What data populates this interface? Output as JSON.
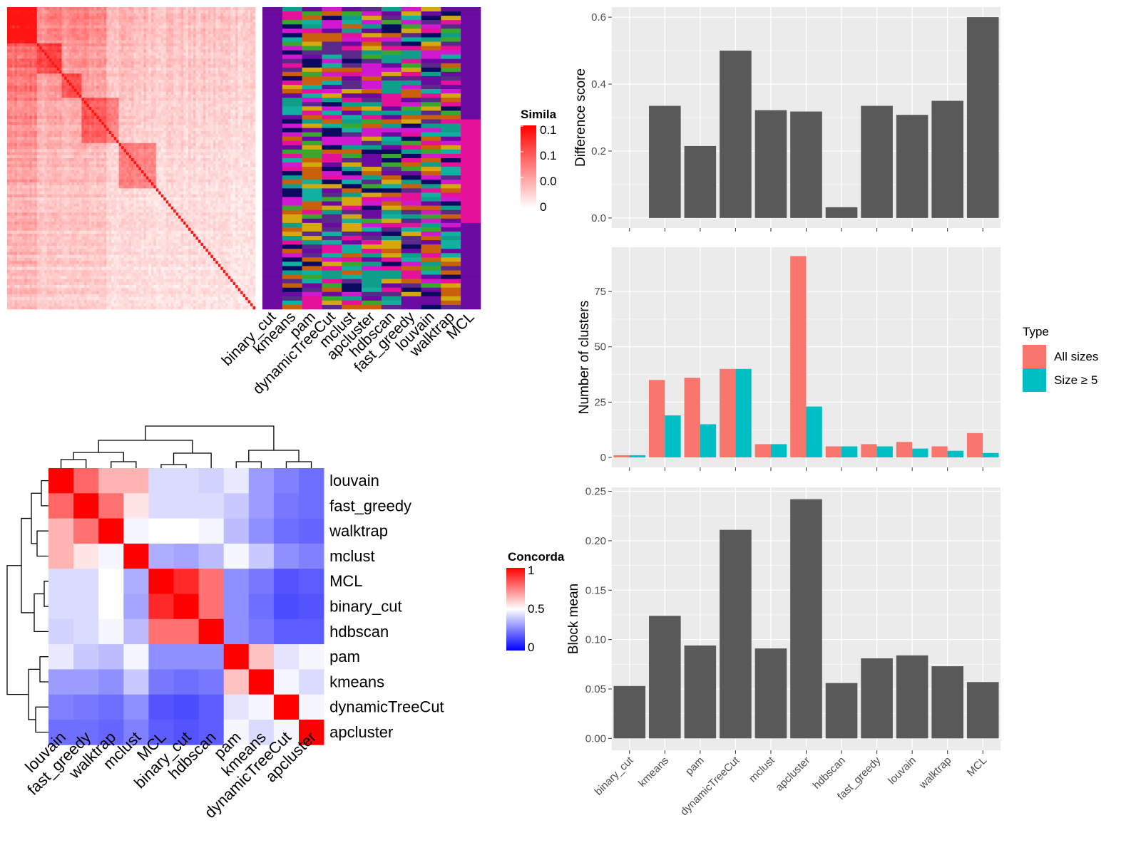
{
  "methods_order": [
    "binary_cut",
    "kmeans",
    "pam",
    "dynamicTreeCut",
    "mclust",
    "apcluster",
    "hdbscan",
    "fast_greedy",
    "louvain",
    "walktrap",
    "MCL"
  ],
  "chart_data": [
    {
      "type": "heatmap",
      "name": "similarity-heatmap",
      "legend_title": "Simila",
      "legend_ticks": [
        "0.1",
        "0.1",
        "0.0",
        "0"
      ],
      "colors": {
        "low": "#ffffff",
        "high": "#ff0000"
      }
    },
    {
      "type": "heatmap",
      "name": "cluster-membership",
      "columns": [
        "binary_cut",
        "kmeans",
        "pam",
        "dynamicTreeCut",
        "mclust",
        "apcluster",
        "hdbscan",
        "fast_greedy",
        "louvain",
        "walktrap",
        "MCL"
      ],
      "palette": [
        "#6a0aa0",
        "#e6119a",
        "#0f9e8a",
        "#d4a80e",
        "#c8600c",
        "#0a0a60",
        "#3aa82e",
        "#d018d0",
        "#12b0a0",
        "#5a2a8a"
      ]
    },
    {
      "type": "heatmap",
      "name": "concordance-heatmap",
      "legend_title": "Concorda",
      "legend_ticks": [
        "1",
        "0.5",
        "0"
      ],
      "colors": {
        "low": "#0000ff",
        "mid": "#ffffff",
        "high": "#ff0000"
      },
      "rows": [
        "louvain",
        "fast_greedy",
        "walktrap",
        "mclust",
        "MCL",
        "binary_cut",
        "hdbscan",
        "pam",
        "kmeans",
        "dynamicTreeCut",
        "apcluster"
      ],
      "columns": [
        "louvain",
        "fast_greedy",
        "walktrap",
        "mclust",
        "MCL",
        "binary_cut",
        "hdbscan",
        "pam",
        "kmeans",
        "dynamicTreeCut",
        "apcluster"
      ],
      "values": [
        [
          1.0,
          0.8,
          0.65,
          0.65,
          0.42,
          0.42,
          0.4,
          0.45,
          0.28,
          0.22,
          0.18
        ],
        [
          0.8,
          1.0,
          0.78,
          0.55,
          0.42,
          0.42,
          0.42,
          0.38,
          0.28,
          0.2,
          0.18
        ],
        [
          0.65,
          0.78,
          1.0,
          0.48,
          0.5,
          0.5,
          0.48,
          0.35,
          0.25,
          0.18,
          0.16
        ],
        [
          0.65,
          0.55,
          0.48,
          1.0,
          0.32,
          0.3,
          0.35,
          0.48,
          0.38,
          0.25,
          0.22
        ],
        [
          0.42,
          0.42,
          0.5,
          0.32,
          1.0,
          0.92,
          0.78,
          0.25,
          0.2,
          0.12,
          0.14
        ],
        [
          0.42,
          0.42,
          0.5,
          0.3,
          0.92,
          1.0,
          0.78,
          0.25,
          0.18,
          0.1,
          0.12
        ],
        [
          0.4,
          0.42,
          0.48,
          0.35,
          0.78,
          0.78,
          1.0,
          0.25,
          0.2,
          0.14,
          0.14
        ],
        [
          0.45,
          0.38,
          0.35,
          0.48,
          0.25,
          0.25,
          0.25,
          1.0,
          0.62,
          0.44,
          0.48
        ],
        [
          0.28,
          0.28,
          0.25,
          0.38,
          0.2,
          0.18,
          0.2,
          0.62,
          1.0,
          0.48,
          0.42
        ],
        [
          0.22,
          0.2,
          0.18,
          0.25,
          0.12,
          0.1,
          0.14,
          0.44,
          0.48,
          1.0,
          0.48
        ],
        [
          0.18,
          0.18,
          0.16,
          0.22,
          0.14,
          0.12,
          0.14,
          0.48,
          0.42,
          0.48,
          1.0
        ]
      ]
    },
    {
      "type": "bar",
      "name": "difference-score",
      "categories": [
        "binary_cut",
        "kmeans",
        "pam",
        "dynamicTreeCut",
        "mclust",
        "apcluster",
        "hdbscan",
        "fast_greedy",
        "louvain",
        "walktrap",
        "MCL"
      ],
      "values": [
        0.0,
        0.335,
        0.215,
        0.5,
        0.322,
        0.318,
        0.032,
        0.335,
        0.308,
        0.35,
        0.6
      ],
      "ylabel": "Difference score",
      "ylim": [
        -0.03,
        0.63
      ],
      "yticks": [
        0.0,
        0.2,
        0.4,
        0.6
      ],
      "ytick_labels": [
        "0.0",
        "0.2",
        "0.4",
        "0.6"
      ],
      "bar_color": "#595959"
    },
    {
      "type": "bar",
      "name": "number-of-clusters",
      "categories": [
        "binary_cut",
        "kmeans",
        "pam",
        "dynamicTreeCut",
        "mclust",
        "apcluster",
        "hdbscan",
        "fast_greedy",
        "louvain",
        "walktrap",
        "MCL"
      ],
      "series": [
        {
          "name": "All sizes",
          "color": "#f8766d",
          "values": [
            1,
            35,
            36,
            40,
            6,
            91,
            5,
            6,
            7,
            5,
            11
          ]
        },
        {
          "name": "Size ≥ 5",
          "color": "#00bfc4",
          "values": [
            1,
            19,
            15,
            40,
            6,
            23,
            5,
            5,
            4,
            3,
            2
          ]
        }
      ],
      "ylabel": "Number of clusters",
      "ylim": [
        -4.5,
        95
      ],
      "yticks": [
        0,
        25,
        50,
        75
      ],
      "ytick_labels": [
        "0",
        "25",
        "50",
        "75"
      ],
      "legend_title": "Type",
      "legend_position": "right"
    },
    {
      "type": "bar",
      "name": "block-mean",
      "categories": [
        "binary_cut",
        "kmeans",
        "pam",
        "dynamicTreeCut",
        "mclust",
        "apcluster",
        "hdbscan",
        "fast_greedy",
        "louvain",
        "walktrap",
        "MCL"
      ],
      "values": [
        0.053,
        0.124,
        0.094,
        0.211,
        0.091,
        0.242,
        0.056,
        0.081,
        0.084,
        0.073,
        0.057
      ],
      "ylabel": "Block mean",
      "ylim": [
        -0.012,
        0.254
      ],
      "yticks": [
        0.0,
        0.05,
        0.1,
        0.15,
        0.2,
        0.25
      ],
      "ytick_labels": [
        "0.00",
        "0.05",
        "0.10",
        "0.15",
        "0.20",
        "0.25"
      ],
      "bar_color": "#595959"
    }
  ]
}
